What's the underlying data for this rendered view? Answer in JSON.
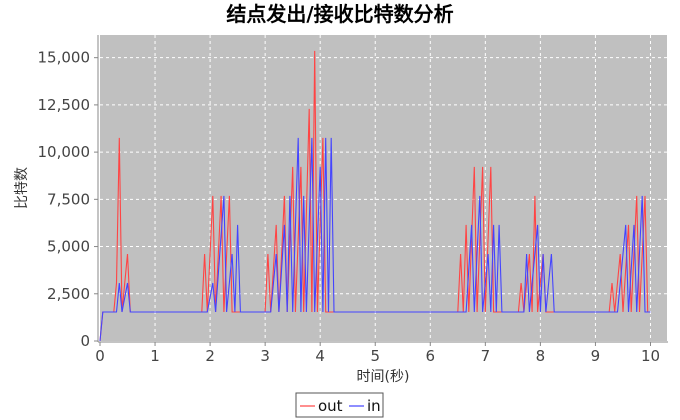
{
  "chart_data": {
    "type": "line",
    "title": "结点发出/接收比特数分析",
    "xlabel": "时间(秒)",
    "ylabel": "比特数",
    "xlim": [
      0,
      10.3
    ],
    "ylim": [
      0,
      16200
    ],
    "x_ticks": [
      0,
      1,
      2,
      3,
      4,
      5,
      6,
      7,
      8,
      9,
      10
    ],
    "y_ticks": [
      0,
      2500,
      5000,
      7500,
      10000,
      12500,
      15000
    ],
    "y_tick_labels": [
      "0",
      "2,500",
      "5,000",
      "7,500",
      "10,000",
      "12,500",
      "15,000"
    ],
    "grid": true,
    "legend_position": "bottom-center",
    "plot_background": "#c0c0c0",
    "series": [
      {
        "name": "out",
        "color": "#ff4444",
        "points": [
          [
            0,
            0
          ],
          [
            0.05,
            1536
          ],
          [
            0.25,
            1536
          ],
          [
            0.3,
            3072
          ],
          [
            0.35,
            10752
          ],
          [
            0.4,
            1536
          ],
          [
            0.5,
            4608
          ],
          [
            0.55,
            1536
          ],
          [
            1.85,
            1536
          ],
          [
            1.9,
            4608
          ],
          [
            1.95,
            1536
          ],
          [
            2.05,
            7680
          ],
          [
            2.1,
            1536
          ],
          [
            2.2,
            7680
          ],
          [
            2.25,
            1536
          ],
          [
            2.35,
            7680
          ],
          [
            2.4,
            1536
          ],
          [
            3.0,
            1536
          ],
          [
            3.05,
            4608
          ],
          [
            3.1,
            1536
          ],
          [
            3.2,
            6144
          ],
          [
            3.25,
            1536
          ],
          [
            3.35,
            7680
          ],
          [
            3.4,
            1536
          ],
          [
            3.5,
            9216
          ],
          [
            3.55,
            1536
          ],
          [
            3.65,
            9216
          ],
          [
            3.7,
            1536
          ],
          [
            3.8,
            12288
          ],
          [
            3.85,
            1536
          ],
          [
            3.9,
            15360
          ],
          [
            3.95,
            1536
          ],
          [
            4.05,
            10752
          ],
          [
            4.1,
            1536
          ],
          [
            6.5,
            1536
          ],
          [
            6.55,
            4608
          ],
          [
            6.6,
            1536
          ],
          [
            6.65,
            6144
          ],
          [
            6.7,
            1536
          ],
          [
            6.8,
            9216
          ],
          [
            6.85,
            1536
          ],
          [
            6.95,
            9216
          ],
          [
            7.0,
            1536
          ],
          [
            7.1,
            9216
          ],
          [
            7.15,
            1536
          ],
          [
            7.6,
            1536
          ],
          [
            7.65,
            3072
          ],
          [
            7.7,
            1536
          ],
          [
            7.8,
            4608
          ],
          [
            7.85,
            1536
          ],
          [
            7.9,
            7680
          ],
          [
            7.95,
            1536
          ],
          [
            8.05,
            4608
          ],
          [
            8.1,
            1536
          ],
          [
            9.25,
            1536
          ],
          [
            9.3,
            3072
          ],
          [
            9.35,
            1536
          ],
          [
            9.45,
            4608
          ],
          [
            9.5,
            1536
          ],
          [
            9.6,
            6144
          ],
          [
            9.65,
            1536
          ],
          [
            9.75,
            7680
          ],
          [
            9.8,
            1536
          ],
          [
            9.9,
            7680
          ],
          [
            9.95,
            1536
          ],
          [
            10.0,
            1536
          ]
        ]
      },
      {
        "name": "in",
        "color": "#4444ff",
        "points": [
          [
            0,
            0
          ],
          [
            0.05,
            1536
          ],
          [
            0.3,
            1536
          ],
          [
            0.35,
            3072
          ],
          [
            0.4,
            1536
          ],
          [
            0.5,
            3072
          ],
          [
            0.55,
            1536
          ],
          [
            1.95,
            1536
          ],
          [
            2.05,
            3072
          ],
          [
            2.1,
            1536
          ],
          [
            2.25,
            7680
          ],
          [
            2.3,
            1536
          ],
          [
            2.4,
            4608
          ],
          [
            2.45,
            1536
          ],
          [
            2.5,
            6144
          ],
          [
            2.55,
            1536
          ],
          [
            3.1,
            1536
          ],
          [
            3.2,
            4608
          ],
          [
            3.25,
            1536
          ],
          [
            3.35,
            6144
          ],
          [
            3.4,
            1536
          ],
          [
            3.45,
            7680
          ],
          [
            3.5,
            1536
          ],
          [
            3.6,
            10752
          ],
          [
            3.65,
            1536
          ],
          [
            3.7,
            7680
          ],
          [
            3.75,
            1536
          ],
          [
            3.85,
            10752
          ],
          [
            3.9,
            1536
          ],
          [
            4.0,
            9216
          ],
          [
            4.05,
            1536
          ],
          [
            4.1,
            10752
          ],
          [
            4.15,
            1536
          ],
          [
            4.2,
            10752
          ],
          [
            4.25,
            1536
          ],
          [
            6.6,
            1536
          ],
          [
            6.65,
            1536
          ],
          [
            6.75,
            6144
          ],
          [
            6.8,
            1536
          ],
          [
            6.9,
            7680
          ],
          [
            6.95,
            1536
          ],
          [
            7.05,
            4608
          ],
          [
            7.1,
            1536
          ],
          [
            7.15,
            6144
          ],
          [
            7.2,
            1536
          ],
          [
            7.25,
            6144
          ],
          [
            7.3,
            1536
          ],
          [
            7.7,
            1536
          ],
          [
            7.75,
            4608
          ],
          [
            7.8,
            1536
          ],
          [
            7.95,
            6144
          ],
          [
            8.0,
            1536
          ],
          [
            8.05,
            4608
          ],
          [
            8.1,
            1536
          ],
          [
            8.2,
            4608
          ],
          [
            8.25,
            1536
          ],
          [
            9.4,
            1536
          ],
          [
            9.5,
            4608
          ],
          [
            9.55,
            6144
          ],
          [
            9.6,
            1536
          ],
          [
            9.7,
            6144
          ],
          [
            9.75,
            1536
          ],
          [
            9.85,
            7680
          ],
          [
            9.9,
            1536
          ],
          [
            10.0,
            1536
          ]
        ]
      }
    ]
  }
}
